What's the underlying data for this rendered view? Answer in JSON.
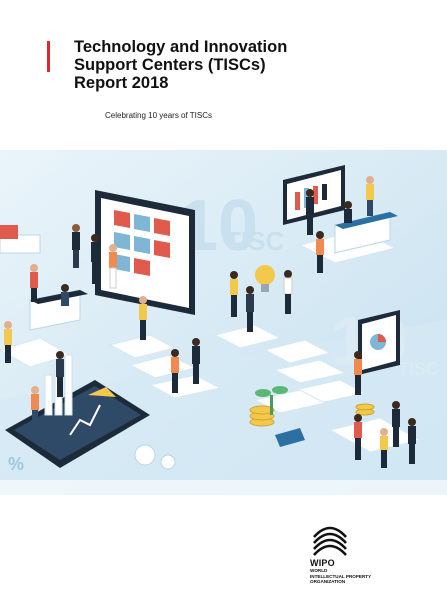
{
  "cover": {
    "title_lines": [
      "Technology and Innovation",
      "Support Centers (TISCs)",
      "Report 2018"
    ],
    "subtitle": "Celebrating 10 years of TISCs"
  },
  "illustration": {
    "big_number": "10",
    "brand_text": "TISC",
    "brand_text_lower": "tisc",
    "percent_text": "%",
    "colors": {
      "light_blue": "#cfe6f3",
      "mid_blue": "#7fb6d6",
      "dark_navy": "#1d2a3a",
      "red": "#e05a4e",
      "orange": "#f08a50",
      "yellow": "#f2c94c"
    }
  },
  "publisher": {
    "name": "WIPO",
    "full_name_lines": [
      "World",
      "Intellectual Property",
      "Organization"
    ],
    "logo_icon": "wipo-logo-icon"
  }
}
